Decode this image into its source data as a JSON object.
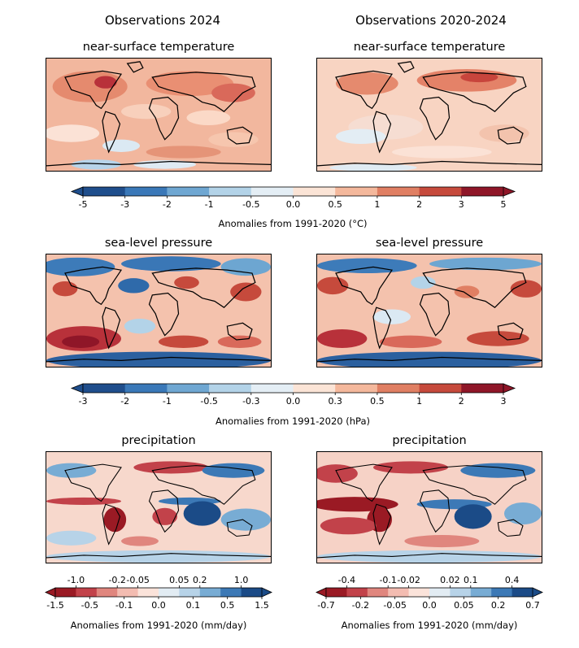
{
  "columns": {
    "left": "Observations 2024",
    "right": "Observations 2020-2024"
  },
  "panels": {
    "t_left": "near-surface temperature",
    "t_right": "near-surface temperature",
    "p_left": "sea-level pressure",
    "p_right": "sea-level pressure",
    "r_left": "precipitation",
    "r_right": "precipitation"
  },
  "colorbars": {
    "temp": {
      "ticks": [
        "-5",
        "-3",
        "-2",
        "-1",
        "-0.5",
        "0.0",
        "0.5",
        "1",
        "2",
        "3",
        "5"
      ],
      "label": "Anomalies from 1991-2020 (°C)",
      "colors": [
        "#1f4e8c",
        "#3a78b8",
        "#6fa7d2",
        "#b3d3e8",
        "#e4eef5",
        "#fbe4d6",
        "#f4b89c",
        "#e07f63",
        "#c64a3c",
        "#8f1628"
      ]
    },
    "pres": {
      "ticks": [
        "-3",
        "-2",
        "-1",
        "-0.5",
        "-0.3",
        "0.0",
        "0.3",
        "0.5",
        "1",
        "2",
        "3"
      ],
      "label": "Anomalies from 1991-2020 (hPa)",
      "colors": [
        "#1f4e8c",
        "#3a78b8",
        "#6fa7d2",
        "#b3d3e8",
        "#e4eef5",
        "#fbe4d6",
        "#f4b89c",
        "#e07f63",
        "#c64a3c",
        "#8f1628"
      ]
    },
    "prec_left": {
      "ticks_top": [
        "-1.0",
        "-0.2",
        "-0.05",
        "0.05",
        "0.2",
        "1.0"
      ],
      "ticks_bottom": [
        "-1.5",
        "-0.5",
        "-0.1",
        "0.0",
        "0.1",
        "0.5",
        "1.5"
      ],
      "label": "Anomalies from 1991-2020 (mm/day)",
      "colors": [
        "#9a1a24",
        "#c2424a",
        "#e0867e",
        "#f3bcb1",
        "#fbe3da",
        "#e2ecf3",
        "#b7d3e8",
        "#78acd4",
        "#3c79b6",
        "#1b4b87"
      ]
    },
    "prec_right": {
      "ticks_top": [
        "-0.4",
        "-0.1",
        "-0.02",
        "0.02",
        "0.1",
        "0.4"
      ],
      "ticks_bottom": [
        "-0.7",
        "-0.2",
        "-0.05",
        "0.0",
        "0.05",
        "0.2",
        "0.7"
      ],
      "label": "Anomalies from 1991-2020 (mm/day)",
      "colors": [
        "#9a1a24",
        "#c2424a",
        "#e0867e",
        "#f3bcb1",
        "#fbe3da",
        "#e2ecf3",
        "#b7d3e8",
        "#78acd4",
        "#3c79b6",
        "#1b4b87"
      ]
    }
  }
}
